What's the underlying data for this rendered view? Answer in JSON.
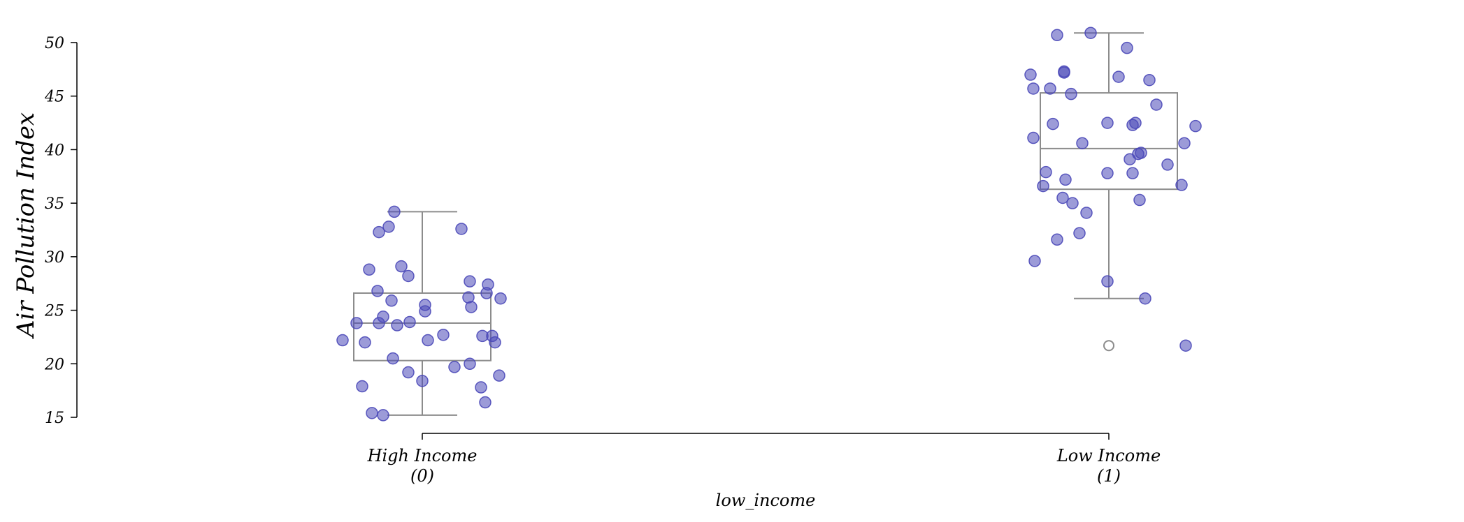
{
  "chart_data": {
    "type": "box-strip",
    "title": "",
    "xlabel": "low_income",
    "ylabel": "Air Pollution Index",
    "ylim": [
      15,
      50
    ],
    "yticks": [
      15,
      20,
      25,
      30,
      35,
      40,
      45,
      50
    ],
    "grid": false,
    "legend": "none",
    "colors": {
      "points": "#4a48b8",
      "box": "#8c8c8c",
      "axis": "#000000",
      "outlier_edge": "#8c8c8c"
    },
    "categories": [
      {
        "label_line1": "High Income",
        "label_line2": "(0)",
        "box": {
          "whisker_low": 15.2,
          "q1": 20.3,
          "median": 23.8,
          "q3": 26.6,
          "whisker_high": 34.2
        },
        "outliers": [],
        "points": [
          [
            -0.57,
            22.2
          ],
          [
            -0.47,
            23.8
          ],
          [
            -0.43,
            17.9
          ],
          [
            -0.41,
            22.0
          ],
          [
            -0.38,
            28.8
          ],
          [
            -0.36,
            15.4
          ],
          [
            -0.32,
            26.8
          ],
          [
            -0.31,
            32.3
          ],
          [
            -0.31,
            23.8
          ],
          [
            -0.28,
            24.4
          ],
          [
            -0.28,
            15.2
          ],
          [
            -0.24,
            32.8
          ],
          [
            -0.22,
            25.9
          ],
          [
            -0.21,
            20.5
          ],
          [
            -0.2,
            34.2
          ],
          [
            -0.18,
            23.6
          ],
          [
            -0.15,
            29.1
          ],
          [
            -0.1,
            28.2
          ],
          [
            -0.1,
            19.2
          ],
          [
            -0.09,
            23.9
          ],
          [
            0.0,
            18.4
          ],
          [
            0.02,
            25.5
          ],
          [
            0.02,
            24.9
          ],
          [
            0.04,
            22.2
          ],
          [
            0.15,
            22.7
          ],
          [
            0.23,
            19.7
          ],
          [
            0.28,
            32.6
          ],
          [
            0.33,
            26.2
          ],
          [
            0.34,
            27.7
          ],
          [
            0.34,
            20.0
          ],
          [
            0.35,
            25.3
          ],
          [
            0.42,
            17.8
          ],
          [
            0.43,
            22.6
          ],
          [
            0.45,
            16.4
          ],
          [
            0.46,
            26.6
          ],
          [
            0.47,
            27.4
          ],
          [
            0.5,
            22.6
          ],
          [
            0.52,
            22.0
          ],
          [
            0.55,
            18.9
          ],
          [
            0.56,
            26.1
          ]
        ]
      },
      {
        "label_line1": "Low Income",
        "label_line2": "(1)",
        "box": {
          "whisker_low": 26.1,
          "q1": 36.3,
          "median": 40.1,
          "q3": 45.3,
          "whisker_high": 50.9
        },
        "outliers": [
          21.7
        ],
        "points": [
          [
            -0.56,
            47.0
          ],
          [
            -0.54,
            41.1
          ],
          [
            -0.54,
            45.7
          ],
          [
            -0.53,
            29.6
          ],
          [
            -0.47,
            36.6
          ],
          [
            -0.45,
            37.9
          ],
          [
            -0.42,
            45.7
          ],
          [
            -0.4,
            42.4
          ],
          [
            -0.37,
            50.7
          ],
          [
            -0.37,
            31.6
          ],
          [
            -0.33,
            35.5
          ],
          [
            -0.32,
            47.3
          ],
          [
            -0.32,
            47.2
          ],
          [
            -0.31,
            37.2
          ],
          [
            -0.27,
            45.2
          ],
          [
            -0.26,
            35.0
          ],
          [
            -0.21,
            32.2
          ],
          [
            -0.19,
            40.6
          ],
          [
            -0.16,
            34.1
          ],
          [
            -0.13,
            50.9
          ],
          [
            -0.01,
            37.8
          ],
          [
            -0.01,
            42.5
          ],
          [
            -0.01,
            27.7
          ],
          [
            0.07,
            46.8
          ],
          [
            0.13,
            49.5
          ],
          [
            0.15,
            39.1
          ],
          [
            0.17,
            37.8
          ],
          [
            0.17,
            42.3
          ],
          [
            0.19,
            42.5
          ],
          [
            0.21,
            39.6
          ],
          [
            0.22,
            35.3
          ],
          [
            0.23,
            39.7
          ],
          [
            0.26,
            26.1
          ],
          [
            0.29,
            46.5
          ],
          [
            0.34,
            44.2
          ],
          [
            0.42,
            38.6
          ],
          [
            0.52,
            36.7
          ],
          [
            0.54,
            40.6
          ],
          [
            0.55,
            21.7
          ],
          [
            0.62,
            42.2
          ]
        ]
      }
    ]
  }
}
